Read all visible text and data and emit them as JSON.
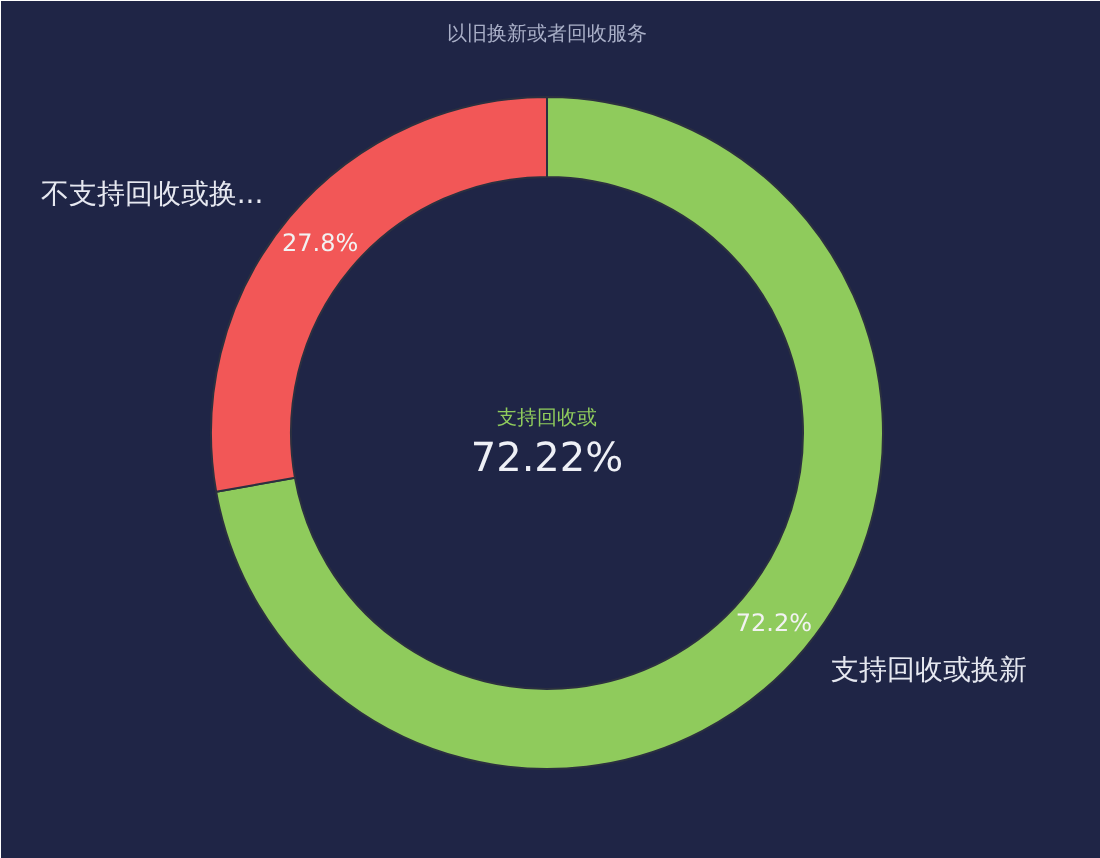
{
  "chart_data": {
    "type": "donut",
    "title": "以旧换新或者回收服务",
    "categories": [
      "支持回收或换新",
      "不支持回收或换..."
    ],
    "values": [
      72.2,
      27.8
    ],
    "colors": [
      "#8fcb5c",
      "#f25757"
    ],
    "value_labels": [
      "72.2%",
      "27.8%"
    ],
    "annotations": [
      "支持回收或",
      "72.22%"
    ]
  }
}
